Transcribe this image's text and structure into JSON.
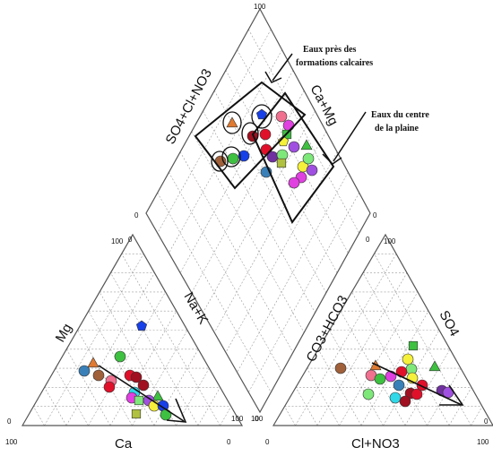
{
  "diagram": {
    "type": "piper",
    "axes": {
      "diamond_left": "SO4+Cl+NO3",
      "diamond_right": "Ca+Mg",
      "cation_left": "Mg",
      "cation_right": "Na+K",
      "cation_bottom": "Ca",
      "anion_left": "CO3+HCO3",
      "anion_right": "SO4",
      "anion_bottom": "Cl+NO3"
    },
    "ticks": {
      "diamond_top": "100",
      "diamond_left": "0",
      "diamond_right": "0",
      "diamond_bottom": "0",
      "cation_top": "100",
      "cation_top_inner": "0",
      "cation_bottom_left": "100",
      "cation_bottom_right": "0",
      "cation_left": "0",
      "cation_right": "100",
      "anion_top": "100",
      "anion_top_inner": "0",
      "anion_bottom_left": "0",
      "anion_bottom_right": "100",
      "anion_left": "100",
      "anion_right": "0"
    },
    "annotations": {
      "calcaire_line1": "Eaux près des",
      "calcaire_line2": "formations calcaires",
      "plaine_line1": "Eaux du centre",
      "plaine_line2": "de la plaine"
    },
    "colors": {
      "red": "#e0102a",
      "darkred": "#a01020",
      "orange": "#e07a30",
      "brown": "#a0603a",
      "yellow": "#f5f03a",
      "green": "#3ec040",
      "lightgreen": "#7ee87a",
      "cyan": "#30d8e8",
      "blue": "#1840e8",
      "steel": "#3a80b8",
      "magenta": "#e040e0",
      "violet": "#a050e0",
      "pink": "#f07090",
      "purple": "#7030a0",
      "olive": "#b0c040"
    }
  }
}
